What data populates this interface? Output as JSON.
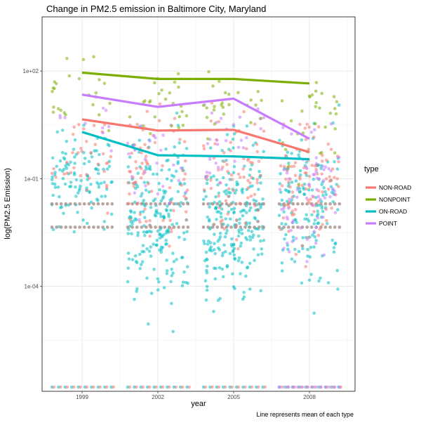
{
  "chart_data": {
    "type": "scatter",
    "title": "Change in PM2.5 emission in Baltimore City, Maryland",
    "xlabel": "year",
    "ylabel": "log(PM2.5 Emission)",
    "caption": "Line represents mean of each type",
    "x_ticks": [
      "1999",
      "2002",
      "2005",
      "2008"
    ],
    "y_scale": "log10",
    "y_ticks": [
      "1e-04",
      "1e-01",
      "1e+02"
    ],
    "y_tick_values": [
      0.0001,
      0.1,
      100
    ],
    "ylim": [
      3e-07,
      400
    ],
    "grid": true,
    "points_jittered": true,
    "legend": {
      "title": "type",
      "position": "right",
      "entries": [
        "NON-ROAD",
        "NONPOINT",
        "ON-ROAD",
        "POINT"
      ]
    },
    "series": [
      {
        "name": "NON-ROAD",
        "color": "#F8766D",
        "mean": [
          4.5,
          2.2,
          2.3,
          0.55
        ]
      },
      {
        "name": "NONPOINT",
        "color": "#7CAE00",
        "mean": [
          90,
          60,
          60,
          45
        ]
      },
      {
        "name": "ON-ROAD",
        "color": "#00BFC4",
        "mean": [
          2.0,
          0.45,
          0.42,
          0.35
        ]
      },
      {
        "name": "POINT",
        "color": "#C77CFF",
        "mean": [
          22,
          10,
          17,
          1.3
        ]
      }
    ]
  }
}
